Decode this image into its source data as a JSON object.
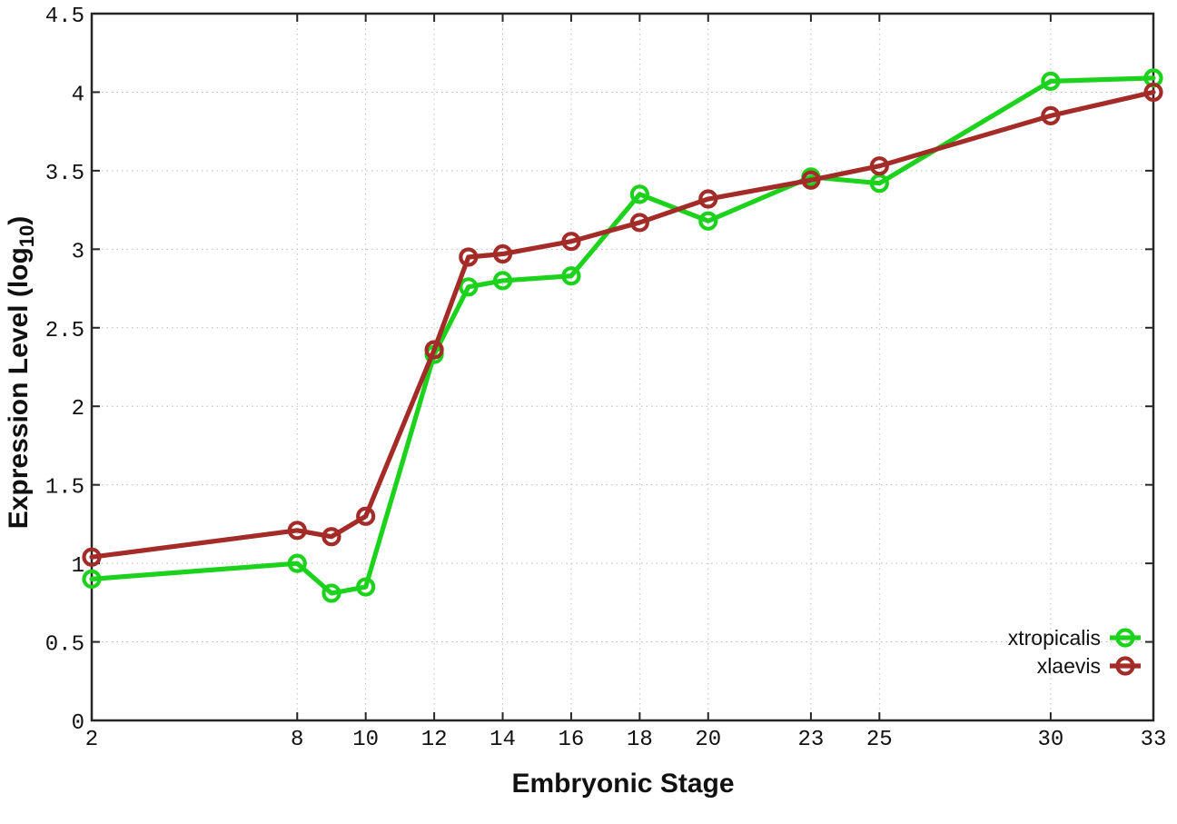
{
  "chart_data": {
    "type": "line",
    "title": "",
    "xlabel": "Embryonic Stage",
    "ylabel": {
      "prefix": "Expression Level (log",
      "subscript": "10",
      "suffix": ")"
    },
    "xlim": [
      2,
      33
    ],
    "ylim": [
      0,
      4.5
    ],
    "xticks": [
      2,
      8,
      10,
      12,
      14,
      16,
      18,
      20,
      23,
      25,
      30,
      33
    ],
    "yticks": [
      0,
      0.5,
      1,
      1.5,
      2,
      2.5,
      3,
      3.5,
      4,
      4.5
    ],
    "grid": true,
    "legend_position": "inside-bottom-right",
    "x": [
      2,
      8,
      9,
      10,
      12,
      13,
      14,
      16,
      18,
      20,
      23,
      25,
      30,
      33
    ],
    "series": [
      {
        "name": "xtropicalis",
        "color": "#1dd21d",
        "values": [
          0.9,
          1.0,
          0.81,
          0.85,
          2.33,
          2.76,
          2.8,
          2.83,
          3.35,
          3.18,
          3.46,
          3.42,
          4.07,
          4.09
        ]
      },
      {
        "name": "xlaevis",
        "color": "#a32b28",
        "values": [
          1.04,
          1.21,
          1.17,
          1.3,
          2.36,
          2.95,
          2.97,
          3.05,
          3.17,
          3.32,
          3.44,
          3.53,
          3.85,
          4.0
        ]
      }
    ]
  },
  "colors": {
    "background": "#ffffff",
    "axis": "#262626",
    "grid": "#bdbdbd",
    "text": "#111111",
    "xtropicalis": "#1dd21d",
    "xlaevis": "#a32b28"
  }
}
